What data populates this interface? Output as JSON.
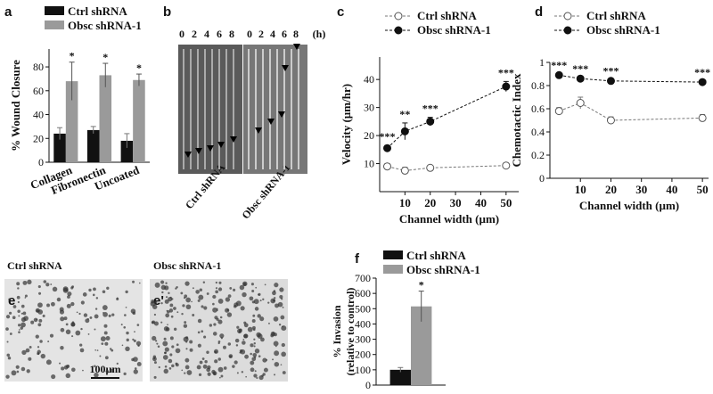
{
  "chart_data": [
    {
      "type": "bar",
      "panel": "a",
      "ylabel": "% Wound Closure",
      "categories": [
        "Collagen",
        "Fibronectin",
        "Uncoated"
      ],
      "series": [
        {
          "name": "Ctrl shRNA",
          "color": "#111111",
          "values": [
            24,
            27,
            18
          ],
          "errors": [
            5,
            3,
            6
          ]
        },
        {
          "name": "Obsc shRNA-1",
          "color": "#9a9a9a",
          "values": [
            68,
            73,
            69
          ],
          "errors": [
            16,
            10,
            5
          ],
          "annotations": [
            "*",
            "*",
            "*"
          ]
        }
      ],
      "ylim": [
        0,
        95
      ],
      "yticks": [
        0,
        20,
        40,
        60,
        80
      ]
    },
    {
      "type": "line",
      "panel": "c",
      "xlabel": "Channel width (µm)",
      "ylabel": "Velocity (µm/hr)",
      "x": [
        3,
        10,
        20,
        50
      ],
      "series": [
        {
          "name": "Ctrl shRNA",
          "color": "#777777",
          "marker_fill": "#ffffff",
          "values": [
            9,
            7.5,
            8.5,
            9.3
          ],
          "errors": [
            1,
            1.2,
            0.8,
            0.8
          ]
        },
        {
          "name": "Obsc shRNA-1",
          "color": "#111111",
          "marker_fill": "#111111",
          "values": [
            15.5,
            21.5,
            25,
            37.5
          ],
          "errors": [
            1,
            3,
            1.5,
            1.8
          ],
          "annotations": [
            "***",
            "**",
            "***",
            "***"
          ]
        }
      ],
      "xlim": [
        0,
        55
      ],
      "xticks": [
        10,
        20,
        30,
        40,
        50
      ],
      "ylim": [
        0,
        48
      ],
      "yticks": [
        10,
        20,
        30,
        40
      ]
    },
    {
      "type": "line",
      "panel": "d",
      "xlabel": "Channel width (µm)",
      "ylabel": "Chemotactic Index",
      "x": [
        3,
        10,
        20,
        50
      ],
      "series": [
        {
          "name": "Ctrl shRNA",
          "color": "#777777",
          "marker_fill": "#ffffff",
          "values": [
            0.58,
            0.65,
            0.5,
            0.52
          ],
          "errors": [
            0.03,
            0.05,
            0.03,
            0.03
          ]
        },
        {
          "name": "Obsc shRNA-1",
          "color": "#111111",
          "marker_fill": "#111111",
          "values": [
            0.89,
            0.86,
            0.84,
            0.83
          ],
          "errors": [
            0.01,
            0.01,
            0.01,
            0.01
          ],
          "annotations": [
            "***",
            "***",
            "***",
            "***"
          ]
        }
      ],
      "xlim": [
        0,
        52
      ],
      "xticks": [
        10,
        20,
        30,
        40,
        50
      ],
      "ylim": [
        0,
        1
      ],
      "yticks": [
        0,
        0.2,
        0.4,
        0.6,
        0.8,
        1
      ]
    },
    {
      "type": "bar",
      "panel": "f",
      "ylabel": [
        "% Invasion",
        "(relative to control)"
      ],
      "series": [
        {
          "name": "Ctrl shRNA",
          "color": "#111111",
          "values": [
            100
          ],
          "errors": [
            15
          ]
        },
        {
          "name": "Obsc shRNA-1",
          "color": "#9a9a9a",
          "values": [
            515
          ],
          "errors": [
            100
          ],
          "annotations": [
            "*"
          ]
        }
      ],
      "ylim": [
        0,
        700
      ],
      "yticks": [
        0,
        100,
        200,
        300,
        400,
        500,
        600,
        700
      ]
    }
  ],
  "panels": {
    "b": {
      "letter": "b",
      "times": [
        "0",
        "2",
        "4",
        "6",
        "8"
      ],
      "unit": "(h)",
      "labels": [
        "Ctrl shRNA",
        "Obsc shRNA-1"
      ]
    },
    "e": {
      "letters": [
        "e",
        "e'"
      ],
      "labels": [
        "Ctrl shRNA",
        "Obsc shRNA-1"
      ],
      "scale": "100µm"
    }
  }
}
